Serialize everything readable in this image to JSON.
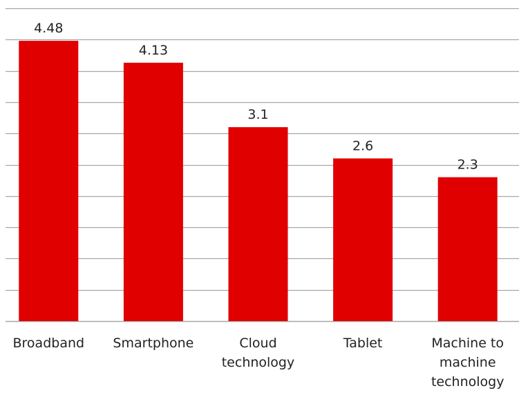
{
  "chart_data": {
    "type": "bar",
    "categories": [
      "Broadband",
      "Smartphone",
      "Cloud technology",
      "Tablet",
      "Machine to machine technology"
    ],
    "category_label_lines": [
      [
        "Broadband"
      ],
      [
        "Smartphone"
      ],
      [
        "Cloud",
        "technology"
      ],
      [
        "Tablet"
      ],
      [
        "Machine to",
        "machine",
        "technology"
      ]
    ],
    "values": [
      4.48,
      4.13,
      3.1,
      2.6,
      2.3
    ],
    "value_labels": [
      "4.48",
      "4.13",
      "3.1",
      "2.6",
      "2.3"
    ],
    "title": "",
    "xlabel": "",
    "ylabel": "",
    "ylim": [
      0,
      5
    ],
    "y_grid_step": 0.5,
    "grid": true,
    "y_tick_labels_shown": false,
    "legend": "none",
    "colors": {
      "bar": "#e00000",
      "grid": "#a6a6a6",
      "text": "#222222"
    }
  }
}
